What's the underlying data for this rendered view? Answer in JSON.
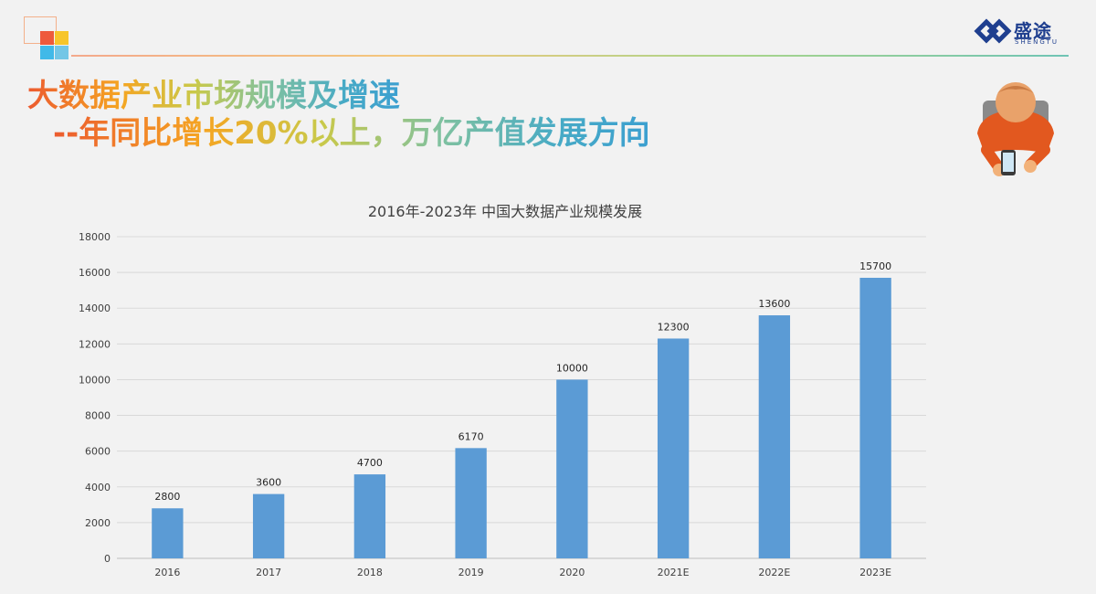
{
  "slide": {
    "title_line1": "大数据产业市场规模及增速",
    "title_line2": "--年同比增长20%以上，万亿产值发展方向"
  },
  "brand": {
    "name": "盛途",
    "sub": "SHENGTU",
    "color": "#1f3f8f"
  },
  "colors": {
    "bar": "#5b9bd5",
    "grid": "#d9d9d9",
    "text": "#404040",
    "accent": "#ec5b2f"
  },
  "icons": {
    "logo": "colored-squares-icon",
    "brand": "shengtu-logo-icon",
    "person": "person-with-phone-icon"
  },
  "chart_data": {
    "type": "bar",
    "title": "2016年-2023年   中国大数据产业规模发展",
    "categories": [
      "2016",
      "2017",
      "2018",
      "2019",
      "2020",
      "2021E",
      "2022E",
      "2023E"
    ],
    "values": [
      2800,
      3600,
      4700,
      6170,
      10000,
      12300,
      13600,
      15700
    ],
    "ylim": [
      0,
      18000
    ],
    "yticks": [
      0,
      2000,
      4000,
      6000,
      8000,
      10000,
      12000,
      14000,
      16000,
      18000
    ],
    "xlabel": "",
    "ylabel": "",
    "grid": true,
    "legend": "none",
    "data_labels": true
  }
}
